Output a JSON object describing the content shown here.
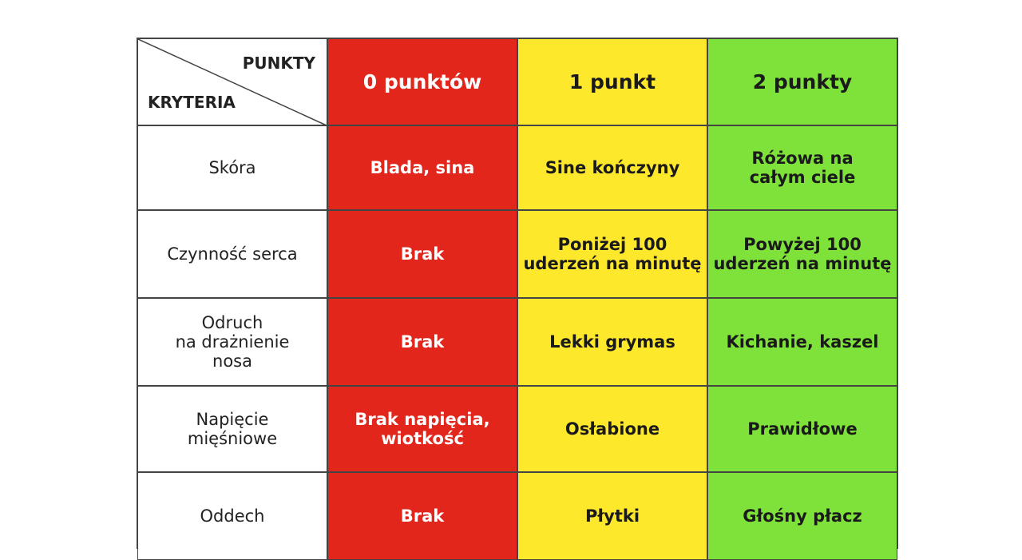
{
  "header": {
    "corner_top": "PUNKTY",
    "corner_bottom": "KRYTERIA",
    "columns": [
      "0 punktów",
      "1 punkt",
      "2 punkty"
    ]
  },
  "rows": [
    [
      "Skóra",
      "Blada, sina",
      "Sine kończyny",
      "Różowa na\ncałym ciele"
    ],
    [
      "Czynność serca",
      "Brak",
      "Poniżej 100\nuderzeń na minutę",
      "Powyżej 100\nuderzeń na minutę"
    ],
    [
      "Odruch\nna drażnienie\nnosa",
      "Brak",
      "Lekki grymas",
      "Kichanie, kaszel"
    ],
    [
      "Napięcie\nmięśniowe",
      "Brak napięcia,\nwiotkość",
      "Osłabione",
      "Prawidłowe"
    ],
    [
      "Oddech",
      "Brak",
      "Płytki",
      "Głośny płacz"
    ]
  ]
}
